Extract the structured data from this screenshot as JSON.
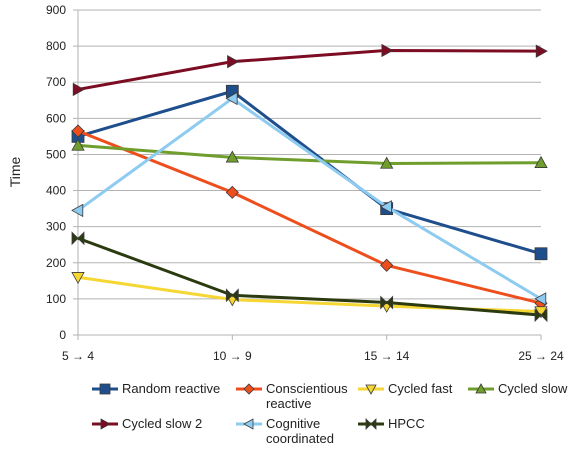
{
  "chart_data": {
    "type": "line",
    "title": "",
    "xlabel": "",
    "ylabel": "Time",
    "categories": [
      "5 → 4",
      "10 → 9",
      "15 → 14",
      "25 → 24"
    ],
    "ylim": [
      0,
      900
    ],
    "yticks": [
      0,
      100,
      200,
      300,
      400,
      500,
      600,
      700,
      800,
      900
    ],
    "grid": "horizontal",
    "legend": "bottom",
    "series": [
      {
        "name": "Random reactive",
        "values": [
          550,
          675,
          350,
          225
        ],
        "color": "#1f4e8c",
        "marker": "square"
      },
      {
        "name": "Conscientious reactive",
        "name_lines": [
          "Conscientious",
          "reactive"
        ],
        "values": [
          565,
          395,
          193,
          88
        ],
        "color": "#ee4e1c",
        "marker": "diamond"
      },
      {
        "name": "Cycled fast",
        "values": [
          160,
          98,
          80,
          65
        ],
        "color": "#f5d632",
        "marker": "tri-down"
      },
      {
        "name": "Cycled slow",
        "values": [
          525,
          492,
          475,
          477
        ],
        "color": "#6f9e2c",
        "marker": "tri-up"
      },
      {
        "name": "Cycled slow 2",
        "values": [
          680,
          757,
          788,
          786
        ],
        "color": "#7b0c22",
        "marker": "tri-right"
      },
      {
        "name": "Cognitive coordinated",
        "name_lines": [
          "Cognitive",
          "coordinated"
        ],
        "values": [
          345,
          655,
          355,
          100
        ],
        "color": "#8ecbf0",
        "marker": "tri-left"
      },
      {
        "name": "HPCC",
        "values": [
          268,
          110,
          90,
          55
        ],
        "color": "#2c3a0f",
        "marker": "bowtie"
      }
    ]
  }
}
